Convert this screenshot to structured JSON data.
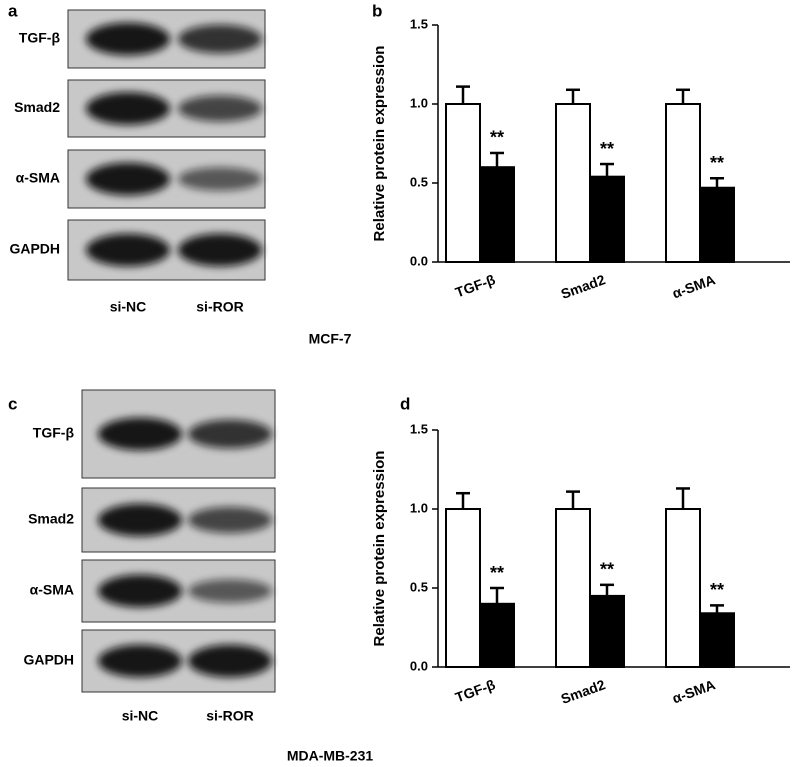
{
  "blots": [
    {
      "label": "a",
      "rows": [
        "TGF-β",
        "Smad2",
        "α-SMA",
        "GAPDH"
      ],
      "lanes": [
        "si-NC",
        "si-ROR"
      ],
      "cell_line": "MCF-7"
    },
    {
      "label": "c",
      "rows": [
        "TGF-β",
        "Smad2",
        "α-SMA",
        "GAPDH"
      ],
      "lanes": [
        "si-NC",
        "si-ROR"
      ],
      "cell_line": "MDA-MB-231"
    }
  ],
  "chart_data": [
    {
      "type": "bar",
      "label": "b",
      "y_label": "Relative protein expression",
      "categories": [
        "TGF-β",
        "Smad2",
        "α-SMA"
      ],
      "series": [
        {
          "color": "#ffffff",
          "values": [
            1.0,
            1.0,
            1.0
          ],
          "errors": [
            0.11,
            0.09,
            0.09
          ]
        },
        {
          "color": "#000000",
          "values": [
            0.6,
            0.54,
            0.47
          ],
          "errors": [
            0.09,
            0.08,
            0.06
          ],
          "annotations": [
            "**",
            "**",
            "**"
          ]
        }
      ],
      "ylim": [
        0,
        1.5
      ],
      "yticks": [
        {
          "value": 0,
          "label": "0.0"
        },
        0.5,
        {
          "value": 1,
          "label": "1.0"
        },
        1.5
      ]
    },
    {
      "type": "bar",
      "label": "d",
      "y_label": "Relative protein expression",
      "categories": [
        "TGF-β",
        "Smad2",
        "α-SMA"
      ],
      "series": [
        {
          "color": "#ffffff",
          "values": [
            1.0,
            1.0,
            1.0
          ],
          "errors": [
            0.1,
            0.11,
            0.13
          ]
        },
        {
          "color": "#000000",
          "values": [
            0.4,
            0.45,
            0.34
          ],
          "errors": [
            0.1,
            0.07,
            0.05
          ],
          "annotations": [
            "**",
            "**",
            "**"
          ]
        }
      ],
      "ylim": [
        0,
        1.5
      ],
      "yticks": [
        {
          "value": 0,
          "label": "0.0"
        },
        0.5,
        {
          "value": 1,
          "label": "1.0"
        },
        1.5
      ]
    }
  ]
}
